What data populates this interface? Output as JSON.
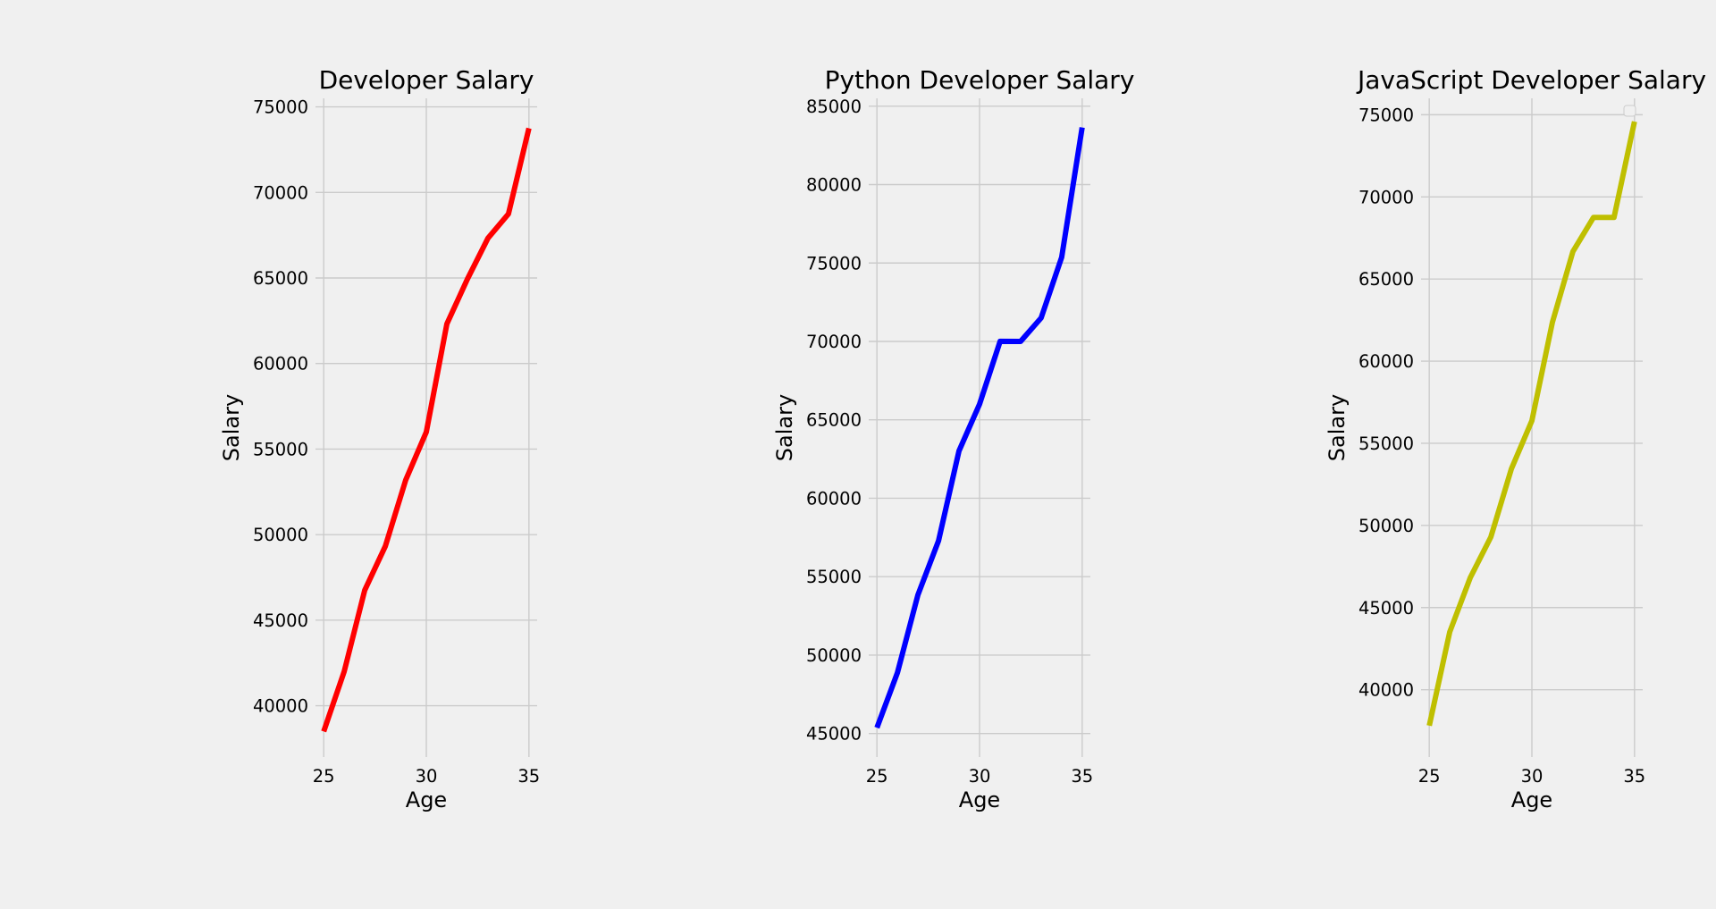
{
  "chart_data": [
    {
      "type": "line",
      "title": "Developer Salary",
      "xlabel": "Age",
      "ylabel": "Salary",
      "xticks": [
        25,
        30,
        35
      ],
      "yticks": [
        40000,
        45000,
        50000,
        55000,
        60000,
        65000,
        70000,
        75000
      ],
      "xlim": [
        24.6,
        35.4
      ],
      "ylim": [
        37000,
        75500
      ],
      "grid": true,
      "series": [
        {
          "color": "#ff0000",
          "x": [
            25,
            26,
            27,
            28,
            29,
            30,
            31,
            32,
            33,
            34,
            35
          ],
          "values": [
            38496,
            42000,
            46752,
            49320,
            53200,
            56000,
            62316,
            64928,
            67317,
            68748,
            73752
          ]
        }
      ]
    },
    {
      "type": "line",
      "title": "Python Developer Salary",
      "xlabel": "Age",
      "ylabel": "Salary",
      "xticks": [
        25,
        30,
        35
      ],
      "yticks": [
        45000,
        50000,
        55000,
        60000,
        65000,
        70000,
        75000,
        80000,
        85000
      ],
      "xlim": [
        24.6,
        35.4
      ],
      "ylim": [
        43500,
        85500
      ],
      "grid": true,
      "series": [
        {
          "color": "#0000ff",
          "x": [
            25,
            26,
            27,
            28,
            29,
            30,
            31,
            32,
            33,
            34,
            35
          ],
          "values": [
            45372,
            48876,
            53850,
            57287,
            63016,
            65998,
            70003,
            70000,
            71496,
            75370,
            83640
          ]
        }
      ]
    },
    {
      "type": "line",
      "title": "JavaScript Developer Salary",
      "xlabel": "Age",
      "ylabel": "Salary",
      "xticks": [
        25,
        30,
        35
      ],
      "yticks": [
        40000,
        45000,
        50000,
        55000,
        60000,
        65000,
        70000,
        75000
      ],
      "xlim": [
        24.6,
        35.4
      ],
      "ylim": [
        35900,
        76000
      ],
      "grid": true,
      "legend": "empty, top-right",
      "series": [
        {
          "color": "#bfbf00",
          "x": [
            25,
            26,
            27,
            28,
            29,
            30,
            31,
            32,
            33,
            34,
            35
          ],
          "values": [
            37810,
            43515,
            46823,
            49293,
            53437,
            56373,
            62375,
            66674,
            68745,
            68746,
            74583
          ]
        }
      ]
    }
  ]
}
